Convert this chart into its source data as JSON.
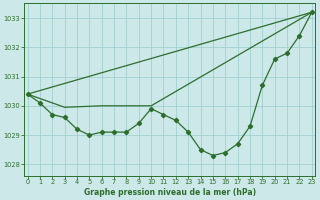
{
  "background_color": "#cce8e8",
  "grid_color": "#99cccc",
  "line_color": "#2d6e2d",
  "marker_color": "#2d6e2d",
  "title": "Graphe pression niveau de la mer (hPa)",
  "ylim": [
    1027.6,
    1033.5
  ],
  "yticks": [
    1028,
    1029,
    1030,
    1031,
    1032,
    1033
  ],
  "xticks": [
    0,
    1,
    2,
    3,
    4,
    5,
    6,
    7,
    8,
    9,
    10,
    11,
    12,
    13,
    14,
    15,
    16,
    17,
    18,
    19,
    20,
    21,
    22,
    23
  ],
  "series1_x": [
    0,
    1,
    2,
    3,
    4,
    5,
    6,
    7,
    8,
    9,
    10,
    11,
    12,
    13,
    14,
    15,
    16,
    17,
    18,
    19,
    20,
    21,
    22,
    23
  ],
  "series1_y": [
    1030.4,
    1030.1,
    1029.7,
    1029.6,
    1029.2,
    1029.0,
    1029.1,
    1029.1,
    1029.1,
    1029.4,
    1029.9,
    1029.7,
    1029.5,
    1029.1,
    1028.5,
    1028.3,
    1028.4,
    1028.7,
    1029.3,
    1030.7,
    1031.6,
    1031.8,
    1032.4,
    1033.2
  ],
  "series2_x": [
    0,
    23
  ],
  "series2_y": [
    1030.4,
    1033.2
  ],
  "series3_x": [
    0,
    3,
    6,
    10,
    23
  ],
  "series3_y": [
    1030.4,
    1029.95,
    1030.0,
    1030.0,
    1033.2
  ],
  "figwidth": 3.2,
  "figheight": 2.0,
  "dpi": 100
}
